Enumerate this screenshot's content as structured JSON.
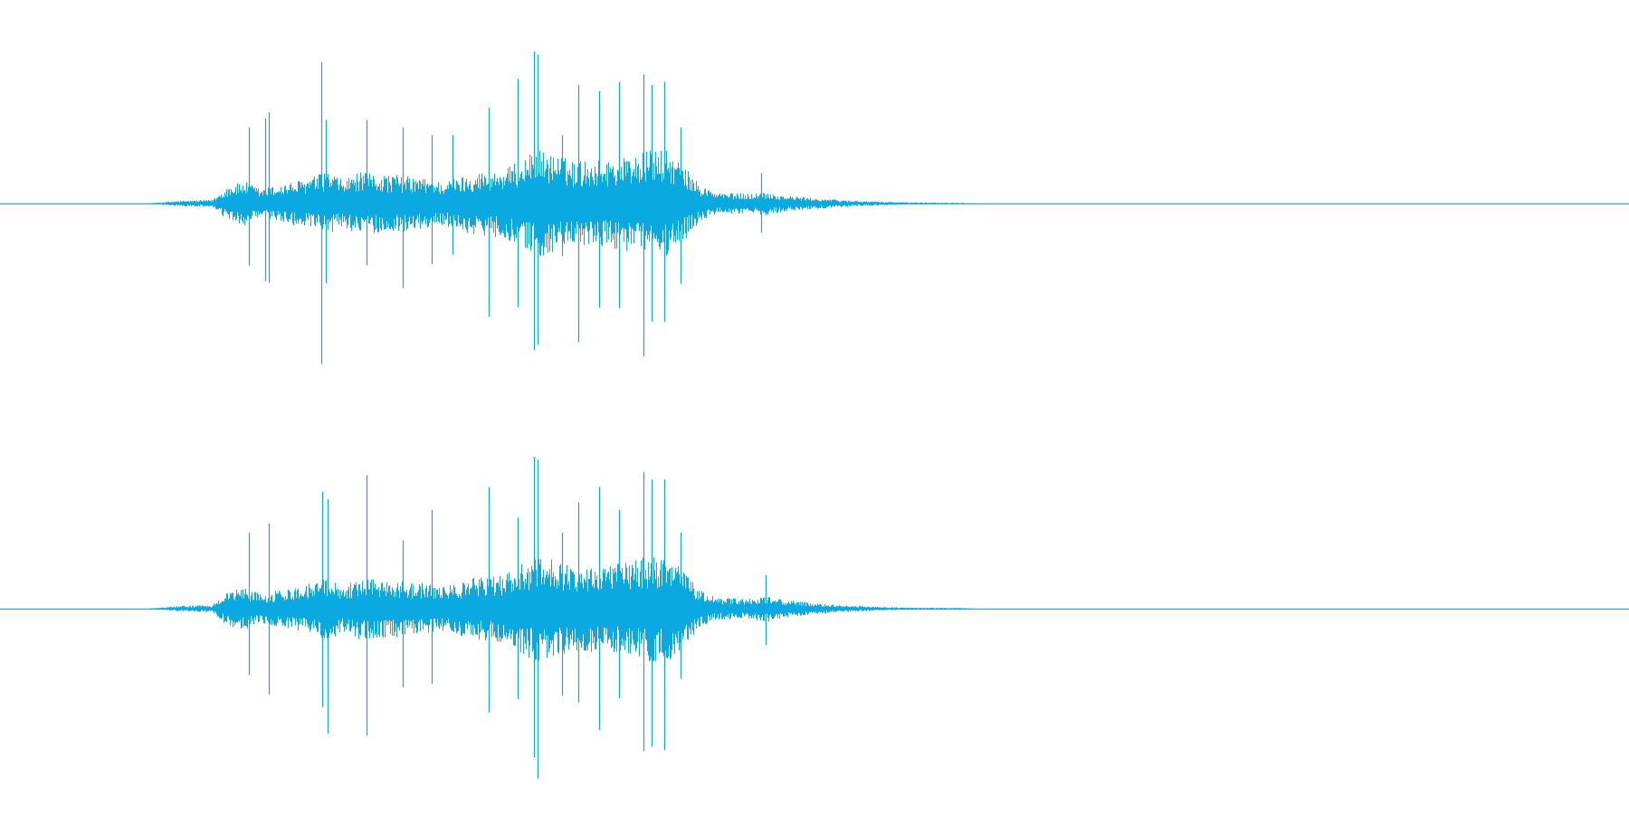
{
  "waveform": {
    "color": "#0aa9e1",
    "background": "#ffffff",
    "channels": [
      {
        "name": "",
        "envelope": [
          [
            0.0,
            0.0
          ],
          [
            0.09,
            0.0
          ],
          [
            0.11,
            0.015
          ],
          [
            0.13,
            0.02
          ],
          [
            0.14,
            0.1
          ],
          [
            0.15,
            0.12
          ],
          [
            0.16,
            0.08
          ],
          [
            0.18,
            0.12
          ],
          [
            0.19,
            0.14
          ],
          [
            0.2,
            0.18
          ],
          [
            0.21,
            0.13
          ],
          [
            0.22,
            0.17
          ],
          [
            0.24,
            0.16
          ],
          [
            0.26,
            0.14
          ],
          [
            0.27,
            0.12
          ],
          [
            0.28,
            0.14
          ],
          [
            0.29,
            0.17
          ],
          [
            0.31,
            0.19
          ],
          [
            0.33,
            0.3
          ],
          [
            0.35,
            0.24
          ],
          [
            0.37,
            0.24
          ],
          [
            0.39,
            0.27
          ],
          [
            0.4,
            0.3
          ],
          [
            0.41,
            0.29
          ],
          [
            0.42,
            0.2
          ],
          [
            0.43,
            0.1
          ],
          [
            0.44,
            0.06
          ],
          [
            0.46,
            0.055
          ],
          [
            0.47,
            0.065
          ],
          [
            0.48,
            0.045
          ],
          [
            0.5,
            0.03
          ],
          [
            0.52,
            0.018
          ],
          [
            0.54,
            0.01
          ],
          [
            0.56,
            0.006
          ],
          [
            0.59,
            0.004
          ],
          [
            0.6,
            0.0
          ],
          [
            1.0,
            0.0
          ]
        ],
        "spikes": [
          [
            0.153,
            0.5
          ],
          [
            0.163,
            0.56
          ],
          [
            0.165,
            0.6
          ],
          [
            0.197,
            0.93
          ],
          [
            0.2,
            0.55
          ],
          [
            0.225,
            0.55
          ],
          [
            0.247,
            0.5
          ],
          [
            0.265,
            0.45
          ],
          [
            0.278,
            0.45
          ],
          [
            0.3,
            0.63
          ],
          [
            0.318,
            0.82
          ],
          [
            0.328,
            1.0
          ],
          [
            0.33,
            0.98
          ],
          [
            0.345,
            0.45
          ],
          [
            0.355,
            0.78
          ],
          [
            0.368,
            0.74
          ],
          [
            0.38,
            0.8
          ],
          [
            0.395,
            0.85
          ],
          [
            0.4,
            0.78
          ],
          [
            0.408,
            0.8
          ],
          [
            0.418,
            0.5
          ],
          [
            0.467,
            0.2
          ]
        ]
      },
      {
        "name": "",
        "envelope": [
          [
            0.0,
            0.0
          ],
          [
            0.09,
            0.0
          ],
          [
            0.11,
            0.015
          ],
          [
            0.13,
            0.02
          ],
          [
            0.14,
            0.1
          ],
          [
            0.15,
            0.12
          ],
          [
            0.16,
            0.08
          ],
          [
            0.18,
            0.12
          ],
          [
            0.19,
            0.14
          ],
          [
            0.2,
            0.18
          ],
          [
            0.21,
            0.13
          ],
          [
            0.22,
            0.17
          ],
          [
            0.24,
            0.16
          ],
          [
            0.26,
            0.14
          ],
          [
            0.27,
            0.12
          ],
          [
            0.28,
            0.14
          ],
          [
            0.29,
            0.17
          ],
          [
            0.31,
            0.19
          ],
          [
            0.33,
            0.3
          ],
          [
            0.35,
            0.24
          ],
          [
            0.37,
            0.24
          ],
          [
            0.39,
            0.27
          ],
          [
            0.4,
            0.3
          ],
          [
            0.41,
            0.29
          ],
          [
            0.42,
            0.2
          ],
          [
            0.43,
            0.1
          ],
          [
            0.44,
            0.06
          ],
          [
            0.46,
            0.055
          ],
          [
            0.47,
            0.075
          ],
          [
            0.48,
            0.05
          ],
          [
            0.5,
            0.03
          ],
          [
            0.52,
            0.018
          ],
          [
            0.54,
            0.01
          ],
          [
            0.56,
            0.006
          ],
          [
            0.59,
            0.004
          ],
          [
            0.6,
            0.0
          ],
          [
            1.0,
            0.0
          ]
        ],
        "spikes": [
          [
            0.153,
            0.5
          ],
          [
            0.165,
            0.56
          ],
          [
            0.198,
            0.77
          ],
          [
            0.201,
            0.72
          ],
          [
            0.225,
            0.88
          ],
          [
            0.247,
            0.45
          ],
          [
            0.265,
            0.65
          ],
          [
            0.3,
            0.8
          ],
          [
            0.318,
            0.6
          ],
          [
            0.328,
            1.0
          ],
          [
            0.33,
            0.98
          ],
          [
            0.345,
            0.5
          ],
          [
            0.355,
            0.7
          ],
          [
            0.368,
            0.8
          ],
          [
            0.38,
            0.65
          ],
          [
            0.395,
            0.9
          ],
          [
            0.4,
            0.85
          ],
          [
            0.408,
            0.85
          ],
          [
            0.418,
            0.5
          ],
          [
            0.47,
            0.22
          ]
        ]
      }
    ]
  }
}
